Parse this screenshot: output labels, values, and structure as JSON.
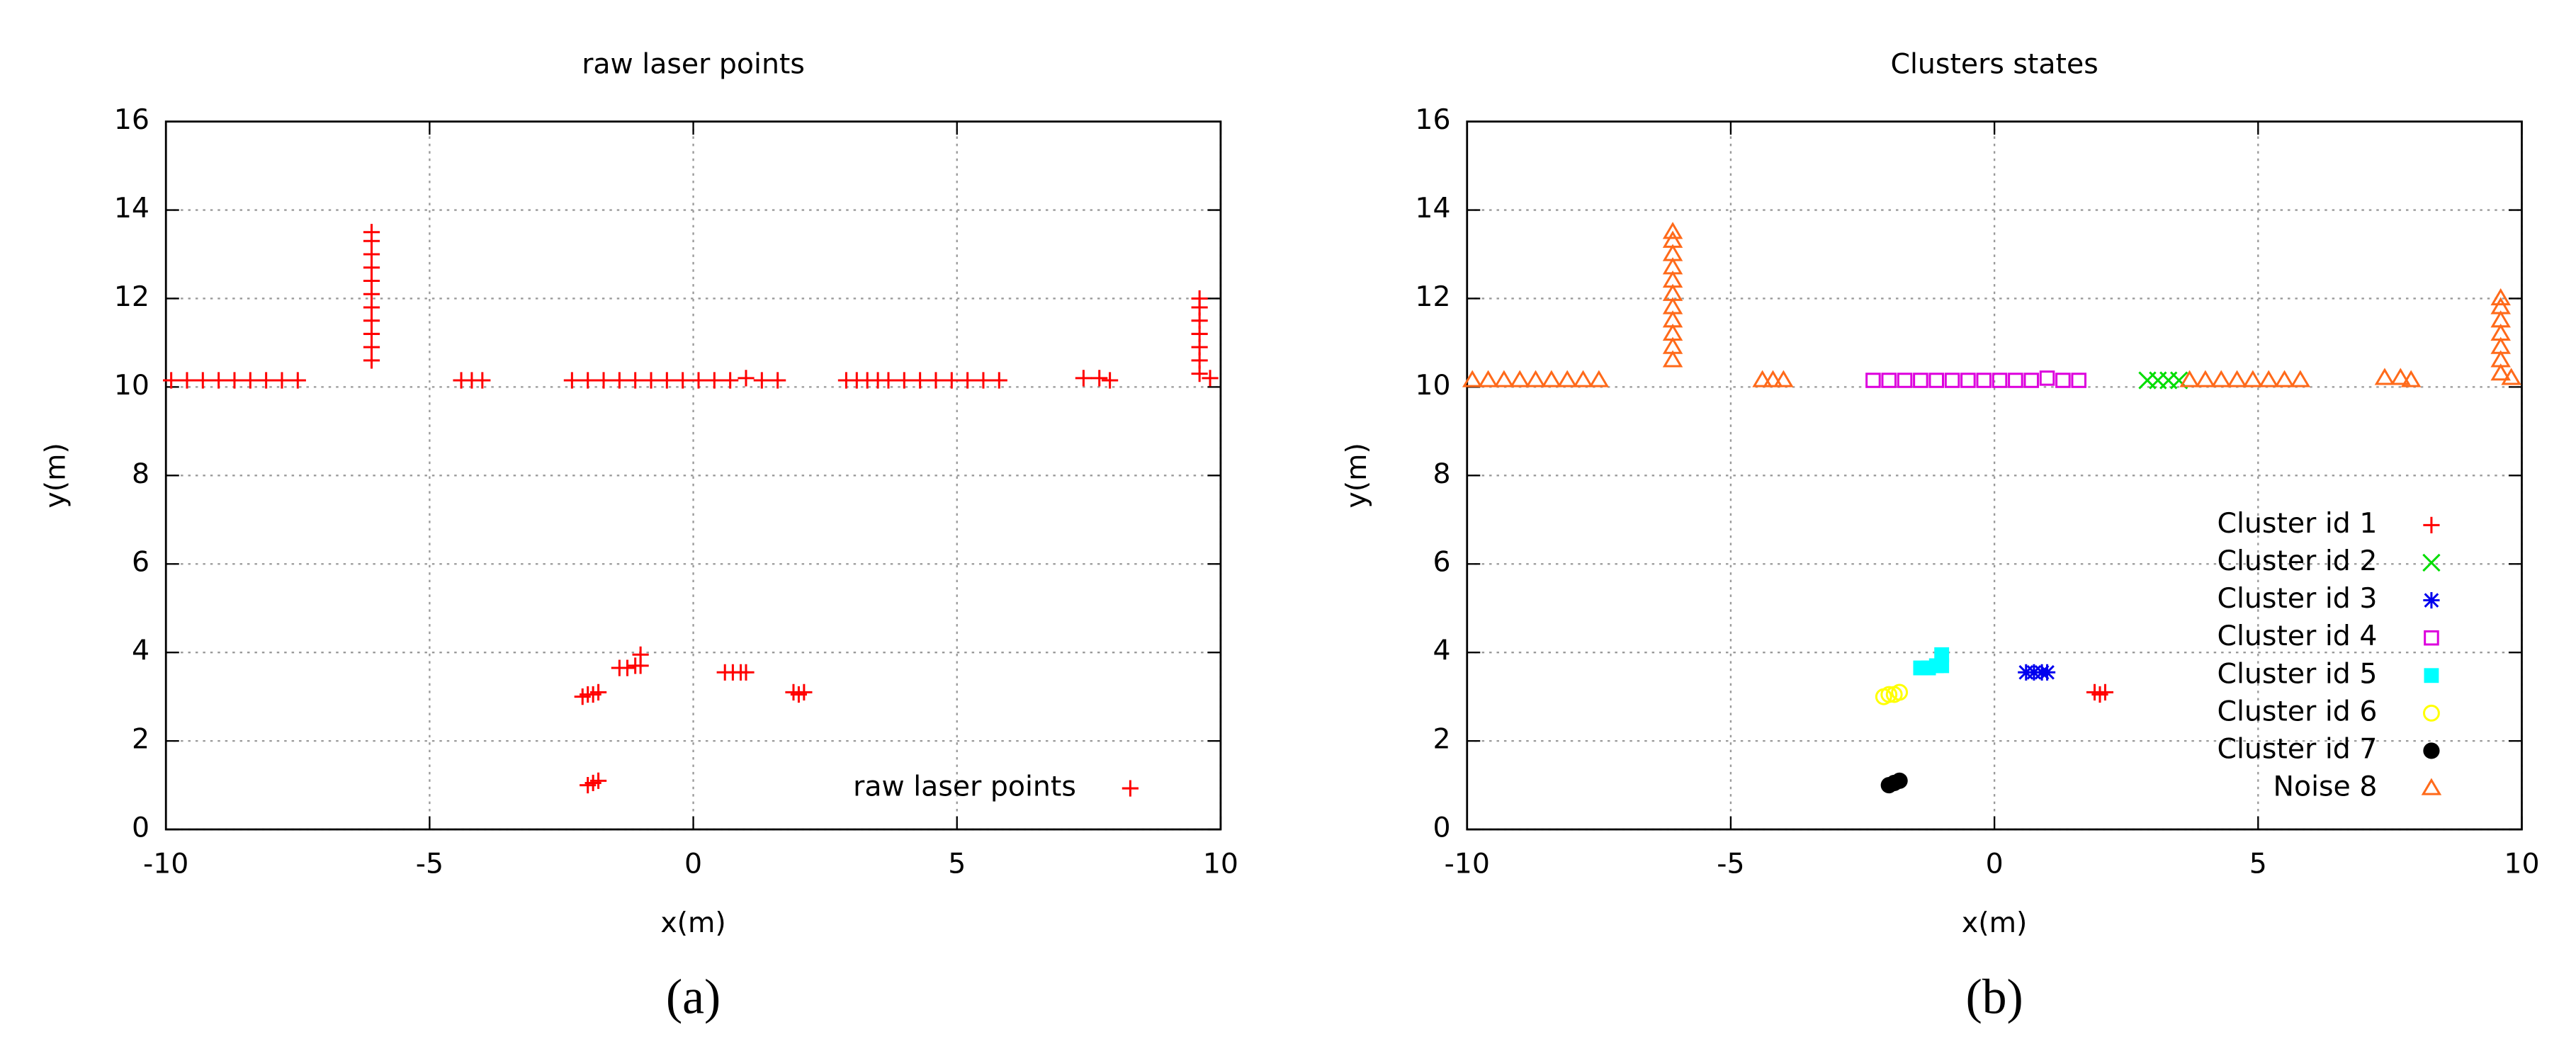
{
  "chart_data": [
    {
      "type": "scatter",
      "title": "raw laser points",
      "caption": "(a)",
      "x_label": "x(m)",
      "y_label": "y(m)",
      "xlim": [
        -10,
        10
      ],
      "ylim": [
        0,
        16
      ],
      "xticks": [
        -10,
        -5,
        0,
        5,
        10
      ],
      "yticks": [
        0,
        2,
        4,
        6,
        8,
        10,
        12,
        14,
        16
      ],
      "grid": true,
      "legend": "lower right",
      "series": [
        {
          "name": "raw laser points",
          "color": "#ff0000",
          "marker": "plus",
          "x": [
            -9.9,
            -9.6,
            -9.3,
            -9.0,
            -8.7,
            -8.4,
            -8.1,
            -7.8,
            -7.5,
            -6.1,
            -6.1,
            -6.1,
            -6.1,
            -6.1,
            -6.1,
            -6.1,
            -6.1,
            -6.1,
            -6.1,
            -6.1,
            -4.4,
            -4.2,
            -4.0,
            3.7,
            4.0,
            4.3,
            4.6,
            4.9,
            5.2,
            5.5,
            5.8,
            7.4,
            7.7,
            7.9,
            9.6,
            9.6,
            9.6,
            9.6,
            9.6,
            9.6,
            9.6,
            9.8,
            -2.3,
            -2.0,
            -1.7,
            -1.4,
            -1.1,
            -0.8,
            -0.5,
            -0.2,
            0.1,
            0.4,
            0.7,
            1.0,
            1.3,
            1.6,
            2.9,
            3.1,
            3.3,
            3.5,
            1.9,
            2.0,
            2.1,
            0.6,
            0.75,
            0.9,
            1.0,
            -1.4,
            -1.25,
            -1.1,
            -1.0,
            -1.0,
            -2.1,
            -2.0,
            -1.9,
            -1.8,
            -2.0,
            -1.9,
            -1.8
          ],
          "y": [
            10.15,
            10.15,
            10.15,
            10.15,
            10.15,
            10.15,
            10.15,
            10.15,
            10.15,
            10.6,
            10.9,
            11.2,
            11.5,
            11.8,
            12.1,
            12.4,
            12.7,
            13.0,
            13.3,
            13.5,
            10.15,
            10.15,
            10.15,
            10.15,
            10.15,
            10.15,
            10.15,
            10.15,
            10.15,
            10.15,
            10.15,
            10.2,
            10.2,
            10.15,
            10.3,
            10.6,
            10.9,
            11.2,
            11.5,
            11.8,
            12.0,
            10.2,
            10.15,
            10.15,
            10.15,
            10.15,
            10.15,
            10.15,
            10.15,
            10.15,
            10.15,
            10.15,
            10.15,
            10.2,
            10.15,
            10.15,
            10.15,
            10.15,
            10.15,
            10.15,
            3.1,
            3.05,
            3.1,
            3.55,
            3.55,
            3.55,
            3.55,
            3.65,
            3.65,
            3.7,
            3.7,
            3.95,
            3.0,
            3.05,
            3.05,
            3.1,
            1.0,
            1.05,
            1.1
          ]
        }
      ]
    },
    {
      "type": "scatter",
      "title": "Clusters states",
      "caption": "(b)",
      "x_label": "x(m)",
      "y_label": "y(m)",
      "xlim": [
        -10,
        10
      ],
      "ylim": [
        0,
        16
      ],
      "xticks": [
        -10,
        -5,
        0,
        5,
        10
      ],
      "yticks": [
        0,
        2,
        4,
        6,
        8,
        10,
        12,
        14,
        16
      ],
      "grid": true,
      "legend": "lower right",
      "series": [
        {
          "name": "Cluster id 1",
          "color": "#ff0000",
          "marker": "plus",
          "x": [
            1.9,
            2.0,
            2.1
          ],
          "y": [
            3.1,
            3.05,
            3.1
          ]
        },
        {
          "name": "Cluster id 2",
          "color": "#00dd00",
          "marker": "cross",
          "x": [
            2.9,
            3.1,
            3.3,
            3.5
          ],
          "y": [
            10.15,
            10.15,
            10.15,
            10.15
          ]
        },
        {
          "name": "Cluster id 3",
          "color": "#0000ee",
          "marker": "star",
          "x": [
            0.6,
            0.75,
            0.9,
            1.0
          ],
          "y": [
            3.55,
            3.55,
            3.55,
            3.55
          ]
        },
        {
          "name": "Cluster id 4",
          "color": "#dd00dd",
          "marker": "square-open",
          "x": [
            -2.3,
            -2.0,
            -1.7,
            -1.4,
            -1.1,
            -0.8,
            -0.5,
            -0.2,
            0.1,
            0.4,
            0.7,
            1.0,
            1.3,
            1.6
          ],
          "y": [
            10.15,
            10.15,
            10.15,
            10.15,
            10.15,
            10.15,
            10.15,
            10.15,
            10.15,
            10.15,
            10.15,
            10.2,
            10.15,
            10.15
          ]
        },
        {
          "name": "Cluster id 5",
          "color": "#00ffff",
          "marker": "square",
          "x": [
            -1.4,
            -1.25,
            -1.1,
            -1.0,
            -1.0
          ],
          "y": [
            3.65,
            3.65,
            3.7,
            3.7,
            3.95
          ]
        },
        {
          "name": "Cluster id 6",
          "color": "#ffff00",
          "marker": "circle-open",
          "x": [
            -2.1,
            -2.0,
            -1.9,
            -1.8
          ],
          "y": [
            3.0,
            3.05,
            3.05,
            3.1
          ]
        },
        {
          "name": "Cluster id 7",
          "color": "#000000",
          "marker": "circle",
          "x": [
            -2.0,
            -1.9,
            -1.8
          ],
          "y": [
            1.0,
            1.05,
            1.1
          ]
        },
        {
          "name": "Noise 8",
          "color": "#ff6a1a",
          "marker": "triangle-open",
          "x": [
            -9.9,
            -9.6,
            -9.3,
            -9.0,
            -8.7,
            -8.4,
            -8.1,
            -7.8,
            -7.5,
            -6.1,
            -6.1,
            -6.1,
            -6.1,
            -6.1,
            -6.1,
            -6.1,
            -6.1,
            -6.1,
            -6.1,
            -6.1,
            -4.4,
            -4.2,
            -4.0,
            3.7,
            4.0,
            4.3,
            4.6,
            4.9,
            5.2,
            5.5,
            5.8,
            7.4,
            7.7,
            7.9,
            9.6,
            9.6,
            9.6,
            9.6,
            9.6,
            9.6,
            9.6,
            9.8
          ],
          "y": [
            10.15,
            10.15,
            10.15,
            10.15,
            10.15,
            10.15,
            10.15,
            10.15,
            10.15,
            10.6,
            10.9,
            11.2,
            11.5,
            11.8,
            12.1,
            12.4,
            12.7,
            13.0,
            13.3,
            13.5,
            10.15,
            10.15,
            10.15,
            10.15,
            10.15,
            10.15,
            10.15,
            10.15,
            10.15,
            10.15,
            10.15,
            10.2,
            10.2,
            10.15,
            10.3,
            10.6,
            10.9,
            11.2,
            11.5,
            11.8,
            12.0,
            10.2
          ]
        }
      ]
    }
  ]
}
